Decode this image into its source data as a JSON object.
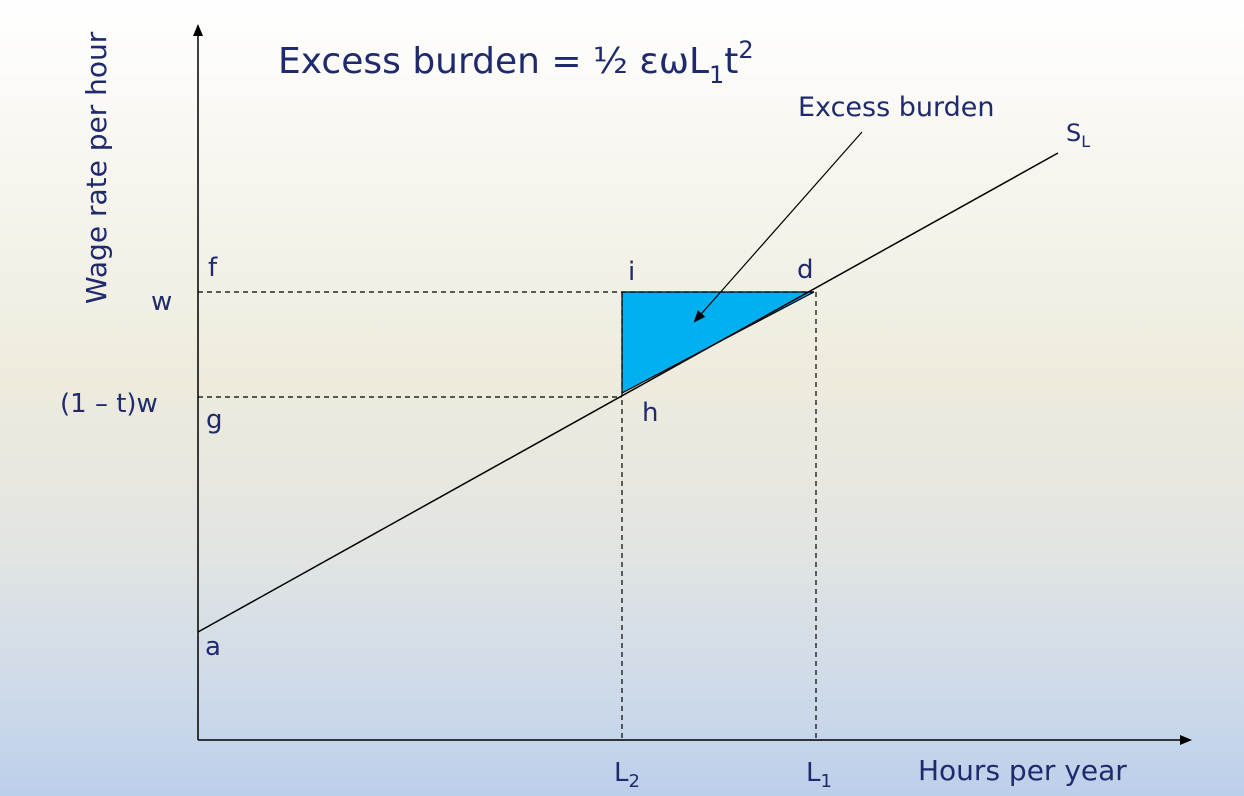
{
  "title": {
    "prefix": "Excess burden = ½ εωL",
    "sub": "1",
    "mid": "t",
    "sup": "2"
  },
  "axes": {
    "ylabel": "Wage rate per hour",
    "xlabel": "Hours per year"
  },
  "y_ticks": {
    "w": "w",
    "net_wage": "(1 – t)w"
  },
  "x_ticks": {
    "L2_base": "L",
    "L2_sub": "2",
    "L1_base": "L",
    "L1_sub": "1"
  },
  "supply_curve": {
    "base": "S",
    "sub": "L"
  },
  "points": {
    "f": "f",
    "i": "i",
    "d": "d",
    "g": "g",
    "h": "h",
    "a": "a"
  },
  "annotation": "Excess burden",
  "colors": {
    "text": "#1f2a6e",
    "triangle_fill": "#00b0f0",
    "lines": "#000000"
  }
}
